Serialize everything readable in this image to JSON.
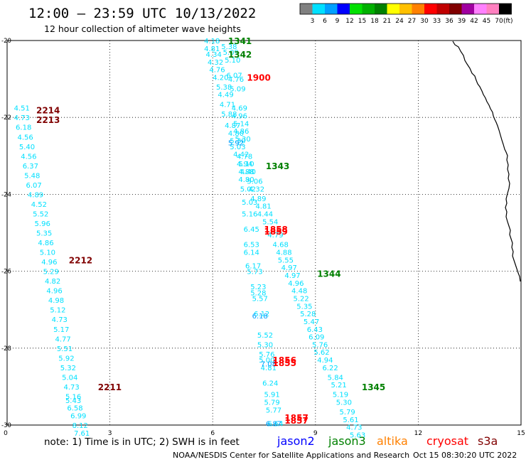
{
  "header": {
    "title": "12:00 — 23:59 UTC 10/13/2022",
    "subtitle": "12 hour collection of altimeter wave heights"
  },
  "legend": {
    "unit": "(ft)",
    "colors": [
      "#808080",
      "#00e0ff",
      "#00a0ff",
      "#0000ff",
      "#00e000",
      "#00b000",
      "#008000",
      "#ffff00",
      "#ffc000",
      "#ff8000",
      "#ff0000",
      "#c00000",
      "#800000",
      "#a000a0",
      "#ff80ff",
      "#ff80c0",
      "#000000"
    ],
    "ticks": [
      "3",
      "6",
      "9",
      "12",
      "15",
      "18",
      "21",
      "24",
      "27",
      "30",
      "33",
      "36",
      "39",
      "42",
      "45",
      "70"
    ]
  },
  "footer": {
    "note": "note: 1) Time is in UTC; 2) SWH is in feet",
    "satellites": [
      {
        "name": "jason2",
        "color": "#0000ff"
      },
      {
        "name": "jason3",
        "color": "#008000"
      },
      {
        "name": "altika",
        "color": "#ff8000"
      },
      {
        "name": "cryosat",
        "color": "#ff0000"
      },
      {
        "name": "s3a",
        "color": "#800000"
      }
    ],
    "credit": "NOAA/NESDIS Center for Satellite Applications and Research",
    "timestamp": "Oct 15 08:30:20 UTC 2022"
  },
  "chart_data": {
    "type": "scatter",
    "title": "12:00 — 23:59 UTC 10/13/2022",
    "subtitle": "12 hour collection of altimeter wave heights",
    "x_ticks": [
      "0",
      "3",
      "6",
      "9",
      "12",
      "15"
    ],
    "y_ticks": [
      "-20",
      "-22",
      "-24",
      "-26",
      "-28",
      "-30"
    ],
    "xlim": [
      0,
      15
    ],
    "ylim": [
      -30,
      -20
    ],
    "grid": true,
    "satellite_labels": [
      {
        "text": "1341",
        "color": "#008000",
        "x": 6.45,
        "y": -20.0
      },
      {
        "text": "1342",
        "color": "#008000",
        "x": 6.45,
        "y": -20.35
      },
      {
        "text": "1900",
        "color": "#ff0000",
        "x": 7.0,
        "y": -20.95
      },
      {
        "text": "2214",
        "color": "#800000",
        "x": 0.85,
        "y": -21.8
      },
      {
        "text": "2213",
        "color": "#800000",
        "x": 0.85,
        "y": -22.05
      },
      {
        "text": "1343",
        "color": "#008000",
        "x": 7.55,
        "y": -23.25
      },
      {
        "text": "1858",
        "color": "#ff0000",
        "x": 7.5,
        "y": -24.9
      },
      {
        "text": "1859",
        "color": "#ff0000",
        "x": 7.5,
        "y": -24.95
      },
      {
        "text": "2212",
        "color": "#800000",
        "x": 1.8,
        "y": -25.7
      },
      {
        "text": "1344",
        "color": "#008000",
        "x": 9.05,
        "y": -26.05
      },
      {
        "text": "1856",
        "color": "#ff0000",
        "x": 7.75,
        "y": -28.3
      },
      {
        "text": "1855",
        "color": "#ff0000",
        "x": 7.75,
        "y": -28.37
      },
      {
        "text": "2211",
        "color": "#800000",
        "x": 2.65,
        "y": -29.0
      },
      {
        "text": "1345",
        "color": "#008000",
        "x": 10.35,
        "y": -29.0
      },
      {
        "text": "1857",
        "color": "#ff0000",
        "x": 8.1,
        "y": -29.8
      },
      {
        "text": "1857",
        "color": "#ff0000",
        "x": 8.1,
        "y": -29.87
      }
    ],
    "series": [
      {
        "color": "#00e0ff",
        "points": [
          {
            "x": 0.2,
            "y": -21.75,
            "v": "4.51"
          },
          {
            "x": 0.2,
            "y": -22.0,
            "v": "4.73"
          },
          {
            "x": 0.25,
            "y": -22.25,
            "v": "6.18"
          },
          {
            "x": 0.3,
            "y": -22.5,
            "v": "4.56"
          },
          {
            "x": 0.35,
            "y": -22.75,
            "v": "5.40"
          },
          {
            "x": 0.4,
            "y": -23.0,
            "v": "4.56"
          },
          {
            "x": 0.45,
            "y": -23.25,
            "v": "6.37"
          },
          {
            "x": 0.5,
            "y": -23.5,
            "v": "5.48"
          },
          {
            "x": 0.55,
            "y": -23.75,
            "v": "6.07"
          },
          {
            "x": 0.6,
            "y": -24.0,
            "v": "4.89"
          },
          {
            "x": 0.7,
            "y": -24.25,
            "v": "4.52"
          },
          {
            "x": 0.75,
            "y": -24.5,
            "v": "5.52"
          },
          {
            "x": 0.8,
            "y": -24.75,
            "v": "5.96"
          },
          {
            "x": 0.85,
            "y": -25.0,
            "v": "5.35"
          },
          {
            "x": 0.9,
            "y": -25.25,
            "v": "4.86"
          },
          {
            "x": 0.95,
            "y": -25.5,
            "v": "5.10"
          },
          {
            "x": 1.0,
            "y": -25.75,
            "v": "4.96"
          },
          {
            "x": 1.05,
            "y": -26.0,
            "v": "5.29"
          },
          {
            "x": 1.1,
            "y": -26.25,
            "v": "4.82"
          },
          {
            "x": 1.15,
            "y": -26.5,
            "v": "4.96"
          },
          {
            "x": 1.2,
            "y": -26.75,
            "v": "4.98"
          },
          {
            "x": 1.25,
            "y": -27.0,
            "v": "5.12"
          },
          {
            "x": 1.3,
            "y": -27.25,
            "v": "4.73"
          },
          {
            "x": 1.35,
            "y": -27.5,
            "v": "5.17"
          },
          {
            "x": 1.4,
            "y": -27.75,
            "v": "4.77"
          },
          {
            "x": 1.45,
            "y": -28.0,
            "v": "5.51"
          },
          {
            "x": 1.5,
            "y": -28.25,
            "v": "5.92"
          },
          {
            "x": 1.55,
            "y": -28.5,
            "v": "5.32"
          },
          {
            "x": 1.6,
            "y": -28.75,
            "v": "5.04"
          },
          {
            "x": 1.65,
            "y": -29.0,
            "v": "4.73"
          },
          {
            "x": 1.7,
            "y": -29.25,
            "v": "5.16"
          },
          {
            "x": 1.7,
            "y": -29.35,
            "v": "5.43"
          },
          {
            "x": 1.75,
            "y": -29.55,
            "v": "6.58"
          },
          {
            "x": 1.85,
            "y": -29.75,
            "v": "6.99"
          },
          {
            "x": 1.9,
            "y": -30.0,
            "v": "8.12"
          },
          {
            "x": 1.95,
            "y": -30.2,
            "v": "7.61"
          }
        ]
      },
      {
        "color": "#00e0ff",
        "points": [
          {
            "x": 5.75,
            "y": -20.0,
            "v": "4.18"
          },
          {
            "x": 5.75,
            "y": -20.2,
            "v": "4.81"
          },
          {
            "x": 5.8,
            "y": -20.35,
            "v": "4.34"
          },
          {
            "x": 5.85,
            "y": -20.55,
            "v": "4.32"
          },
          {
            "x": 5.9,
            "y": -20.75,
            "v": "4.76"
          },
          {
            "x": 6.0,
            "y": -20.95,
            "v": "4.20"
          },
          {
            "x": 6.1,
            "y": -21.2,
            "v": "5.38"
          },
          {
            "x": 6.15,
            "y": -21.4,
            "v": "4.49"
          },
          {
            "x": 6.2,
            "y": -21.65,
            "v": "4.71"
          },
          {
            "x": 6.25,
            "y": -21.9,
            "v": "5.88"
          },
          {
            "x": 6.35,
            "y": -22.2,
            "v": "4.87"
          },
          {
            "x": 6.45,
            "y": -22.4,
            "v": "4.80"
          },
          {
            "x": 6.5,
            "y": -22.6,
            "v": "5.30"
          },
          {
            "x": 6.5,
            "y": -22.75,
            "v": "5.03"
          },
          {
            "x": 6.6,
            "y": -22.95,
            "v": "4.42"
          },
          {
            "x": 6.7,
            "y": -23.2,
            "v": "4.94"
          },
          {
            "x": 6.75,
            "y": -23.4,
            "v": "4.88"
          },
          {
            "x": 6.75,
            "y": -23.6,
            "v": "4.80"
          },
          {
            "x": 6.8,
            "y": -23.85,
            "v": "5.02"
          },
          {
            "x": 6.85,
            "y": -24.2,
            "v": "5.03"
          },
          {
            "x": 6.85,
            "y": -24.5,
            "v": "5.16"
          },
          {
            "x": 6.9,
            "y": -24.9,
            "v": "6.45"
          },
          {
            "x": 6.9,
            "y": -25.3,
            "v": "6.53"
          },
          {
            "x": 6.9,
            "y": -25.5,
            "v": "6.14"
          },
          {
            "x": 6.95,
            "y": -25.85,
            "v": "6.17"
          },
          {
            "x": 7.0,
            "y": -26.0,
            "v": "5.73"
          },
          {
            "x": 7.1,
            "y": -26.4,
            "v": "5.23"
          },
          {
            "x": 7.1,
            "y": -26.55,
            "v": "5.28"
          },
          {
            "x": 7.15,
            "y": -26.7,
            "v": "5.57"
          },
          {
            "x": 7.2,
            "y": -27.1,
            "v": "6.12"
          },
          {
            "x": 7.3,
            "y": -27.65,
            "v": "5.52"
          },
          {
            "x": 7.3,
            "y": -27.9,
            "v": "5.30"
          },
          {
            "x": 7.35,
            "y": -28.15,
            "v": "5.76"
          },
          {
            "x": 7.35,
            "y": -28.3,
            "v": "5.00"
          },
          {
            "x": 7.4,
            "y": -28.5,
            "v": "4.81"
          },
          {
            "x": 7.45,
            "y": -28.9,
            "v": "6.24"
          },
          {
            "x": 7.5,
            "y": -29.2,
            "v": "5.91"
          },
          {
            "x": 7.5,
            "y": -29.4,
            "v": "5.79"
          },
          {
            "x": 7.55,
            "y": -29.6,
            "v": "5.77"
          },
          {
            "x": 7.6,
            "y": -29.95,
            "v": "6.64"
          }
        ]
      },
      {
        "color": "#00e0ff",
        "points": [
          {
            "x": 6.25,
            "y": -20.15,
            "v": "5.38"
          },
          {
            "x": 6.3,
            "y": -20.3,
            "v": "5.09"
          },
          {
            "x": 6.35,
            "y": -20.5,
            "v": "5.10"
          },
          {
            "x": 6.4,
            "y": -20.9,
            "v": "6.07"
          },
          {
            "x": 6.45,
            "y": -21.0,
            "v": "4.76"
          },
          {
            "x": 6.5,
            "y": -21.25,
            "v": "5.09"
          },
          {
            "x": 6.55,
            "y": -21.75,
            "v": "4.69"
          },
          {
            "x": 6.55,
            "y": -21.95,
            "v": "4.96"
          },
          {
            "x": 6.6,
            "y": -22.15,
            "v": "5.14"
          },
          {
            "x": 6.6,
            "y": -22.35,
            "v": "4.86"
          },
          {
            "x": 6.65,
            "y": -22.55,
            "v": "5.30"
          },
          {
            "x": 6.7,
            "y": -23.0,
            "v": "4.78"
          },
          {
            "x": 6.75,
            "y": -23.2,
            "v": "5.10"
          },
          {
            "x": 6.8,
            "y": -23.4,
            "v": "4.40"
          },
          {
            "x": 7.0,
            "y": -23.65,
            "v": "5.06"
          },
          {
            "x": 7.05,
            "y": -23.85,
            "v": "4.32"
          },
          {
            "x": 7.1,
            "y": -24.1,
            "v": "4.89"
          },
          {
            "x": 7.25,
            "y": -24.3,
            "v": "4.81"
          },
          {
            "x": 7.3,
            "y": -24.5,
            "v": "4.44"
          },
          {
            "x": 7.45,
            "y": -24.7,
            "v": "5.54"
          },
          {
            "x": 7.6,
            "y": -25.05,
            "v": "4.79"
          },
          {
            "x": 7.75,
            "y": -25.3,
            "v": "4.68"
          },
          {
            "x": 7.85,
            "y": -25.5,
            "v": "4.88"
          },
          {
            "x": 7.9,
            "y": -25.7,
            "v": "5.55"
          },
          {
            "x": 8.0,
            "y": -25.9,
            "v": "4.97"
          },
          {
            "x": 8.1,
            "y": -26.1,
            "v": "4.97"
          },
          {
            "x": 8.2,
            "y": -26.3,
            "v": "4.96"
          },
          {
            "x": 8.3,
            "y": -26.5,
            "v": "4.48"
          },
          {
            "x": 8.35,
            "y": -26.7,
            "v": "5.22"
          },
          {
            "x": 8.45,
            "y": -26.9,
            "v": "5.35"
          },
          {
            "x": 8.55,
            "y": -27.1,
            "v": "5.28"
          },
          {
            "x": 8.65,
            "y": -27.3,
            "v": "5.47"
          },
          {
            "x": 8.75,
            "y": -27.5,
            "v": "6.43"
          },
          {
            "x": 8.8,
            "y": -27.7,
            "v": "6.09"
          },
          {
            "x": 8.9,
            "y": -27.9,
            "v": "5.76"
          },
          {
            "x": 8.95,
            "y": -28.1,
            "v": "5.62"
          },
          {
            "x": 9.05,
            "y": -28.3,
            "v": "4.94"
          },
          {
            "x": 9.2,
            "y": -28.5,
            "v": "6.22"
          },
          {
            "x": 9.35,
            "y": -28.75,
            "v": "5.84"
          },
          {
            "x": 9.45,
            "y": -28.95,
            "v": "5.21"
          },
          {
            "x": 9.5,
            "y": -29.2,
            "v": "5.19"
          },
          {
            "x": 9.6,
            "y": -29.4,
            "v": "5.30"
          },
          {
            "x": 9.7,
            "y": -29.65,
            "v": "5.79"
          },
          {
            "x": 9.8,
            "y": -29.85,
            "v": "5.61"
          },
          {
            "x": 9.9,
            "y": -30.05,
            "v": "4.73"
          },
          {
            "x": 10.0,
            "y": -30.25,
            "v": "5.63"
          }
        ]
      },
      {
        "color": "#00a0ff",
        "points": [
          {
            "x": 6.45,
            "y": -22.65,
            "v": "5.92"
          },
          {
            "x": 7.15,
            "y": -27.15,
            "v": "6.18"
          },
          {
            "x": 7.4,
            "y": -28.4,
            "v": "7.08"
          },
          {
            "x": 7.55,
            "y": -29.95,
            "v": "6.87"
          }
        ]
      }
    ]
  }
}
